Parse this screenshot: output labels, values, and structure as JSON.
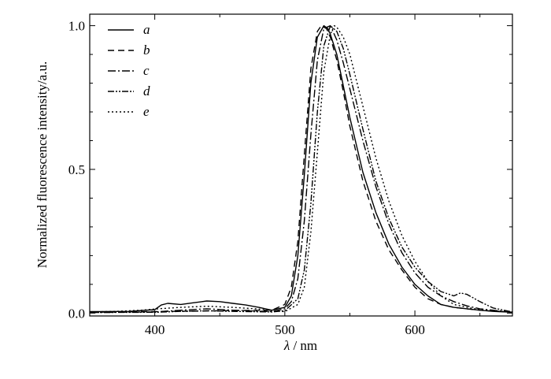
{
  "chart_data": {
    "type": "line",
    "title": "",
    "xlabel_symbol": "λ",
    "xlabel_unit": "/ nm",
    "ylabel": "Normalized fluorescence intensity/a.u.",
    "xlim": [
      350,
      675
    ],
    "ylim": [
      -0.01,
      1.04
    ],
    "xticks": [
      400,
      500,
      600
    ],
    "yticks": [
      0.0,
      0.5,
      1.0
    ],
    "xtick_labels": [
      "400",
      "500",
      "600"
    ],
    "ytick_labels": [
      "0.0",
      "0.5",
      "1.0"
    ],
    "grid": false,
    "legend_position": "top-left",
    "series": [
      {
        "name": "a",
        "dash": "solid",
        "x": [
          350,
          380,
          400,
          405,
          410,
          420,
          430,
          440,
          450,
          460,
          470,
          480,
          490,
          500,
          505,
          510,
          515,
          520,
          525,
          530,
          533,
          535,
          540,
          545,
          550,
          560,
          570,
          580,
          590,
          600,
          610,
          620,
          630,
          640,
          650,
          660,
          675
        ],
        "y": [
          0.005,
          0.006,
          0.012,
          0.028,
          0.034,
          0.03,
          0.036,
          0.042,
          0.04,
          0.034,
          0.028,
          0.02,
          0.01,
          0.02,
          0.06,
          0.2,
          0.48,
          0.8,
          0.96,
          1.0,
          0.99,
          0.97,
          0.9,
          0.79,
          0.68,
          0.49,
          0.35,
          0.24,
          0.16,
          0.1,
          0.06,
          0.03,
          0.02,
          0.015,
          0.01,
          0.006,
          0.003
        ]
      },
      {
        "name": "b",
        "dash": "8,5",
        "x": [
          350,
          400,
          450,
          490,
          500,
          505,
          510,
          515,
          520,
          525,
          528,
          532,
          535,
          540,
          545,
          550,
          560,
          570,
          580,
          590,
          600,
          610,
          620,
          630,
          640,
          650,
          675
        ],
        "y": [
          0.003,
          0.005,
          0.008,
          0.01,
          0.03,
          0.09,
          0.25,
          0.55,
          0.85,
          0.98,
          1.0,
          0.99,
          0.96,
          0.88,
          0.77,
          0.65,
          0.46,
          0.32,
          0.22,
          0.15,
          0.09,
          0.05,
          0.03,
          0.02,
          0.015,
          0.01,
          0.003
        ]
      },
      {
        "name": "c",
        "dash": "10,3,2,3",
        "x": [
          350,
          400,
          420,
          440,
          460,
          490,
          500,
          505,
          510,
          515,
          520,
          525,
          530,
          535,
          540,
          545,
          550,
          560,
          570,
          580,
          590,
          600,
          610,
          620,
          630,
          640,
          650,
          675
        ],
        "y": [
          0.002,
          0.004,
          0.01,
          0.015,
          0.01,
          0.005,
          0.015,
          0.04,
          0.12,
          0.32,
          0.62,
          0.88,
          0.99,
          1.0,
          0.95,
          0.87,
          0.78,
          0.6,
          0.44,
          0.31,
          0.21,
          0.14,
          0.09,
          0.06,
          0.04,
          0.025,
          0.015,
          0.003
        ]
      },
      {
        "name": "d",
        "dash": "8,2,2,2,2,2",
        "x": [
          350,
          400,
          420,
          440,
          460,
          490,
          500,
          510,
          515,
          520,
          525,
          530,
          535,
          540,
          545,
          550,
          560,
          570,
          580,
          590,
          600,
          610,
          620,
          630,
          635,
          640,
          650,
          660,
          675
        ],
        "y": [
          0.002,
          0.003,
          0.006,
          0.008,
          0.006,
          0.004,
          0.008,
          0.05,
          0.15,
          0.38,
          0.7,
          0.93,
          1.0,
          0.98,
          0.92,
          0.83,
          0.64,
          0.46,
          0.33,
          0.23,
          0.16,
          0.11,
          0.075,
          0.06,
          0.07,
          0.065,
          0.04,
          0.018,
          0.004
        ]
      },
      {
        "name": "e",
        "dash": "2,3",
        "x": [
          350,
          370,
          390,
          400,
          420,
          440,
          460,
          480,
          490,
          500,
          510,
          515,
          520,
          525,
          530,
          535,
          538,
          540,
          545,
          550,
          560,
          570,
          580,
          590,
          600,
          610,
          620,
          630,
          640,
          650,
          675
        ],
        "y": [
          0.004,
          0.006,
          0.01,
          0.014,
          0.02,
          0.024,
          0.02,
          0.014,
          0.008,
          0.005,
          0.03,
          0.09,
          0.28,
          0.56,
          0.84,
          0.97,
          1.0,
          0.995,
          0.96,
          0.9,
          0.72,
          0.54,
          0.39,
          0.27,
          0.18,
          0.11,
          0.06,
          0.03,
          0.02,
          0.012,
          0.003
        ]
      }
    ]
  }
}
